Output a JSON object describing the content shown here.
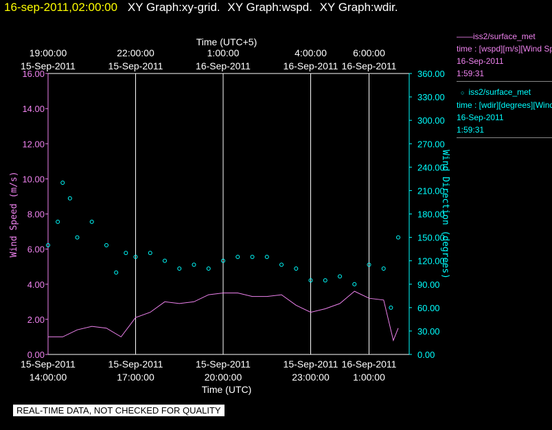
{
  "header": {
    "timestamp": "16-sep-2011,02:00:00",
    "graphs": [
      "XY Graph:xy-grid.",
      "XY Graph:wspd.",
      "XY Graph:wdir."
    ]
  },
  "legend": [
    {
      "marker": "——",
      "source": "iss2/surface_met",
      "label": "time : [wspd][m/s][Wind Speed]",
      "date": "16-Sep-2011",
      "time": "1:59:31",
      "color": "#ee82ee"
    },
    {
      "marker": "○",
      "source": "iss2/surface_met",
      "label": "time : [wdir][degrees][Wind Direction]",
      "date": "16-Sep-2011",
      "time": "1:59:31",
      "color": "#00ffff"
    }
  ],
  "footer": "REAL-TIME DATA, NOT CHECKED FOR QUALITY",
  "colors": {
    "speed": "#ee82ee",
    "direction": "#00ffff",
    "grid": "#ffffff",
    "background": "#000000"
  },
  "chart_data": {
    "type": "line",
    "top_axis_label": "Time (UTC+5)",
    "xlabel": "Time (UTC)",
    "ylabel": "Wind Speed (m/s)",
    "y2label": "Wind Direction (degrees)",
    "x_range": [
      "2011-09-15 14:00",
      "2011-09-16 02:00"
    ],
    "ylim": [
      0,
      16
    ],
    "y2lim": [
      0,
      360
    ],
    "y_ticks": [
      "0.00",
      "2.00",
      "4.00",
      "6.00",
      "8.00",
      "10.00",
      "12.00",
      "14.00",
      "16.00"
    ],
    "y2_ticks": [
      "0.00",
      "30.00",
      "60.00",
      "90.00",
      "120.00",
      "150.00",
      "180.00",
      "210.00",
      "240.00",
      "270.00",
      "300.00",
      "330.00",
      "360.00"
    ],
    "bottom_ticks": [
      {
        "x": "2011-09-15 14:00",
        "date": "15-Sep-2011",
        "time": "14:00:00"
      },
      {
        "x": "2011-09-15 17:00",
        "date": "15-Sep-2011",
        "time": "17:00:00"
      },
      {
        "x": "2011-09-15 20:00",
        "date": "15-Sep-2011",
        "time": "20:00:00"
      },
      {
        "x": "2011-09-15 23:00",
        "date": "15-Sep-2011",
        "time": "23:00:00"
      },
      {
        "x": "2011-09-16 01:00",
        "date": "16-Sep-2011",
        "time": "1:00:00"
      }
    ],
    "top_ticks": [
      {
        "x": "2011-09-15 14:00",
        "time": "19:00:00",
        "date": "15-Sep-2011"
      },
      {
        "x": "2011-09-15 17:00",
        "time": "22:00:00",
        "date": "15-Sep-2011"
      },
      {
        "x": "2011-09-15 20:00",
        "time": "1:00:00",
        "date": "16-Sep-2011"
      },
      {
        "x": "2011-09-15 23:00",
        "time": "4:00:00",
        "date": "16-Sep-2011"
      },
      {
        "x": "2011-09-16 01:00",
        "time": "6:00:00",
        "date": "16-Sep-2011"
      }
    ],
    "gridlines_at": [
      "2011-09-15 17:00",
      "2011-09-15 20:00",
      "2011-09-15 23:00",
      "2011-09-16 01:00"
    ],
    "series": [
      {
        "name": "iss2/surface_met time : [wspd][m/s]",
        "axis": "left",
        "style": "line",
        "x": [
          "2011-09-15 14:00",
          "2011-09-15 14:30",
          "2011-09-15 15:00",
          "2011-09-15 15:30",
          "2011-09-15 16:00",
          "2011-09-15 16:30",
          "2011-09-15 17:00",
          "2011-09-15 17:30",
          "2011-09-15 18:00",
          "2011-09-15 18:30",
          "2011-09-15 19:00",
          "2011-09-15 19:30",
          "2011-09-15 20:00",
          "2011-09-15 20:30",
          "2011-09-15 21:00",
          "2011-09-15 21:30",
          "2011-09-15 22:00",
          "2011-09-15 22:30",
          "2011-09-15 23:00",
          "2011-09-15 23:30",
          "2011-09-16 00:00",
          "2011-09-16 00:30",
          "2011-09-16 01:00",
          "2011-09-16 01:30",
          "2011-09-16 01:50",
          "2011-09-16 02:00"
        ],
        "values": [
          1.0,
          1.0,
          1.4,
          1.6,
          1.5,
          1.0,
          2.1,
          2.4,
          3.0,
          2.9,
          3.0,
          3.4,
          3.5,
          3.5,
          3.3,
          3.3,
          3.4,
          2.8,
          2.4,
          2.6,
          2.9,
          3.6,
          3.2,
          3.1,
          0.8,
          1.5
        ]
      },
      {
        "name": "iss2/surface_met time : [wdir][degrees]",
        "axis": "right",
        "style": "markers",
        "x": [
          "2011-09-15 14:00",
          "2011-09-15 14:20",
          "2011-09-15 14:30",
          "2011-09-15 14:45",
          "2011-09-15 15:00",
          "2011-09-15 15:30",
          "2011-09-15 16:00",
          "2011-09-15 16:20",
          "2011-09-15 16:40",
          "2011-09-15 17:00",
          "2011-09-15 17:30",
          "2011-09-15 18:00",
          "2011-09-15 18:30",
          "2011-09-15 19:00",
          "2011-09-15 19:30",
          "2011-09-15 20:00",
          "2011-09-15 20:30",
          "2011-09-15 21:00",
          "2011-09-15 21:30",
          "2011-09-15 22:00",
          "2011-09-15 22:30",
          "2011-09-15 23:00",
          "2011-09-15 23:30",
          "2011-09-16 00:00",
          "2011-09-16 00:30",
          "2011-09-16 01:00",
          "2011-09-16 01:30",
          "2011-09-16 01:45",
          "2011-09-16 02:00"
        ],
        "values": [
          140,
          170,
          220,
          200,
          150,
          170,
          140,
          105,
          130,
          125,
          130,
          120,
          110,
          115,
          110,
          120,
          125,
          125,
          125,
          115,
          110,
          95,
          95,
          100,
          90,
          115,
          110,
          60,
          150
        ]
      }
    ]
  }
}
